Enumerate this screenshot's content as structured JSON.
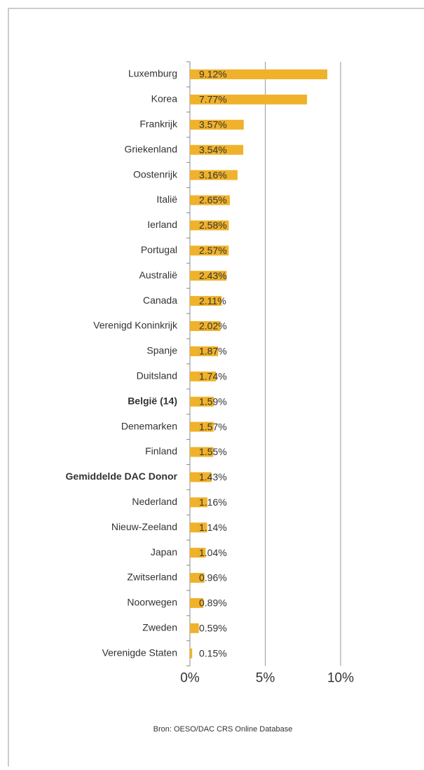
{
  "chart_data": {
    "type": "bar",
    "orientation": "horizontal",
    "categories": [
      "Luxemburg",
      "Korea",
      "Frankrijk",
      "Griekenland",
      "Oostenrijk",
      "Italië",
      "Ierland",
      "Portugal",
      "Australië",
      "Canada",
      "Verenigd Koninkrijk",
      "Spanje",
      "Duitsland",
      "België (14)",
      "Denemarken",
      "Finland",
      "Gemiddelde DAC Donor",
      "Nederland",
      "Nieuw-Zeeland",
      "Japan",
      "Zwitserland",
      "Noorwegen",
      "Zweden",
      "Verenigde Staten"
    ],
    "values": [
      9.12,
      7.77,
      3.57,
      3.54,
      3.16,
      2.65,
      2.58,
      2.57,
      2.43,
      2.11,
      2.02,
      1.87,
      1.74,
      1.59,
      1.57,
      1.55,
      1.43,
      1.16,
      1.14,
      1.04,
      0.96,
      0.89,
      0.59,
      0.15
    ],
    "value_labels": [
      "9.12%",
      "7.77%",
      "3.57%",
      "3.54%",
      "3.16%",
      "2.65%",
      "2.58%",
      "2.57%",
      "2.43%",
      "2.11%",
      "2.02%",
      "1.87%",
      "1.74%",
      "1.59%",
      "1.57%",
      "1.55%",
      "1.43%",
      "1.16%",
      "1.14%",
      "1.04%",
      "0.96%",
      "0.89%",
      "0.59%",
      "0.15%"
    ],
    "bold_categories": [
      13,
      16
    ],
    "color": "#efb22a",
    "xlim": [
      0,
      10
    ],
    "xticks": [
      {
        "value": 0,
        "label": "0%"
      },
      {
        "value": 5,
        "label": "5%"
      },
      {
        "value": 10,
        "label": "10%"
      }
    ],
    "grid": true,
    "source": "Bron: OESO/DAC CRS Online Database"
  }
}
